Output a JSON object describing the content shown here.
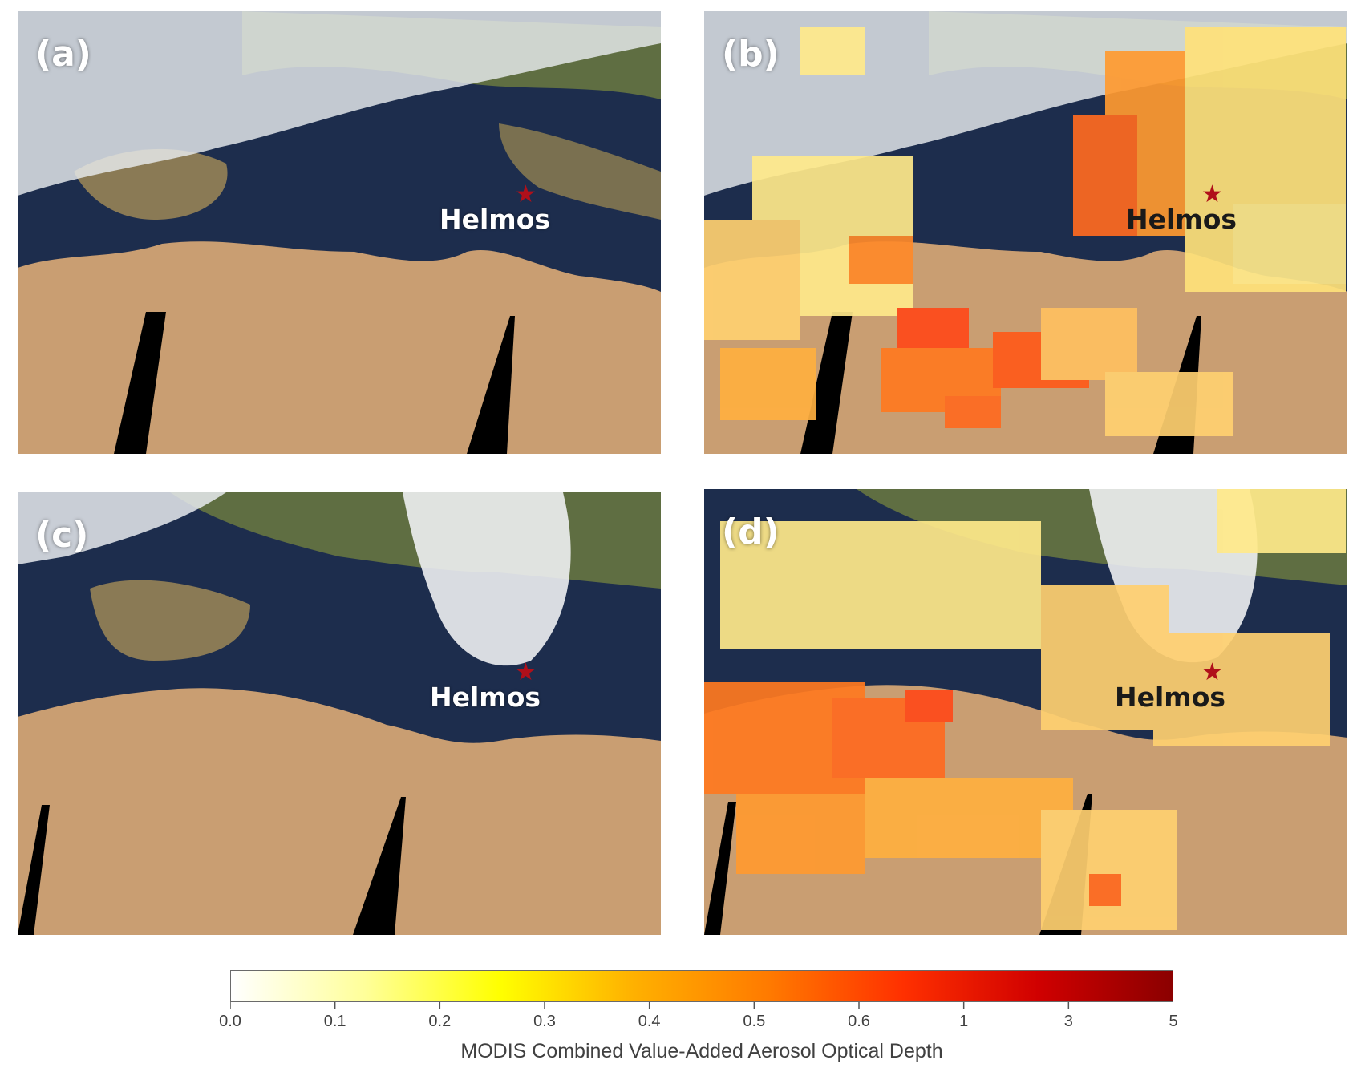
{
  "panels": [
    {
      "letter": "(a)",
      "site": "Helmos",
      "overlay": false
    },
    {
      "letter": "(b)",
      "site": "Helmos",
      "overlay": true
    },
    {
      "letter": "(c)",
      "site": "Helmos",
      "overlay": false
    },
    {
      "letter": "(d)",
      "site": "Helmos",
      "overlay": true
    }
  ],
  "colorbar": {
    "title": "MODIS Combined Value-Added Aerosol Optical Depth",
    "ticks": [
      "0.0",
      "0.1",
      "0.2",
      "0.3",
      "0.4",
      "0.5",
      "0.6",
      "1",
      "3",
      "5"
    ],
    "colors": [
      "#ffffff",
      "#ffff99",
      "#ffff00",
      "#ffb000",
      "#ff7a00",
      "#ff3000",
      "#d00000",
      "#8b0000"
    ]
  },
  "colors": {
    "sea": "#1d2d4d",
    "land_desert": "#c99e72",
    "land_europe": "#5f6e42",
    "cloud": "#eef0f2",
    "site_marker": "#b0101a"
  }
}
